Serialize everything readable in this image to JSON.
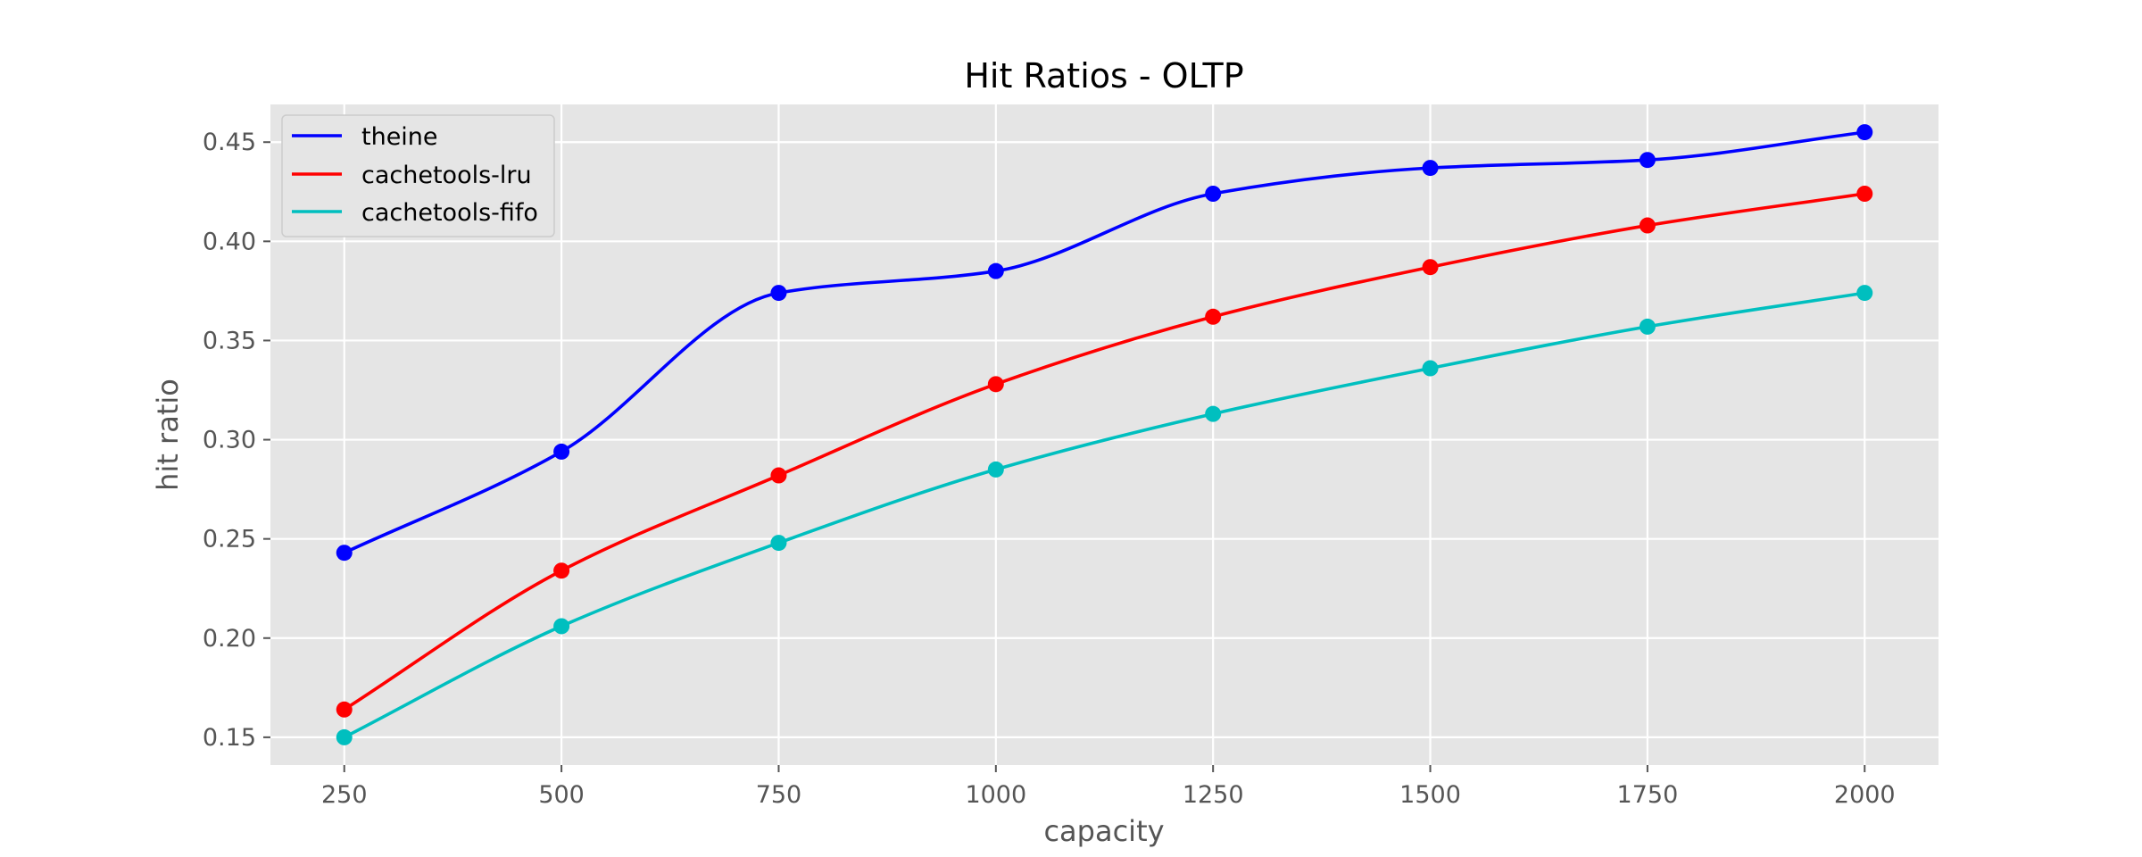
{
  "chart_data": {
    "type": "line",
    "title": "Hit Ratios - OLTP",
    "xlabel": "capacity",
    "ylabel": "hit ratio",
    "x": [
      250,
      500,
      750,
      1000,
      1250,
      1500,
      1750,
      2000
    ],
    "x_ticks": [
      "250",
      "500",
      "750",
      "1000",
      "1250",
      "1500",
      "1750",
      "2000"
    ],
    "y_ticks": [
      "0.15",
      "0.20",
      "0.25",
      "0.30",
      "0.35",
      "0.40",
      "0.45"
    ],
    "xlim": [
      165,
      2085
    ],
    "ylim": [
      0.136,
      0.469
    ],
    "grid": true,
    "legend_position": "top-left",
    "background": "#e5e5e5",
    "smooth": true,
    "series": [
      {
        "name": "theine",
        "color": "#0000ff",
        "values": [
          0.243,
          0.294,
          0.374,
          0.385,
          0.424,
          0.437,
          0.441,
          0.455
        ]
      },
      {
        "name": "cachetools-lru",
        "color": "#ff0000",
        "values": [
          0.164,
          0.234,
          0.282,
          0.328,
          0.362,
          0.387,
          0.408,
          0.424
        ]
      },
      {
        "name": "cachetools-fifo",
        "color": "#00bfbf",
        "values": [
          0.15,
          0.206,
          0.248,
          0.285,
          0.313,
          0.336,
          0.357,
          0.374
        ]
      }
    ]
  }
}
